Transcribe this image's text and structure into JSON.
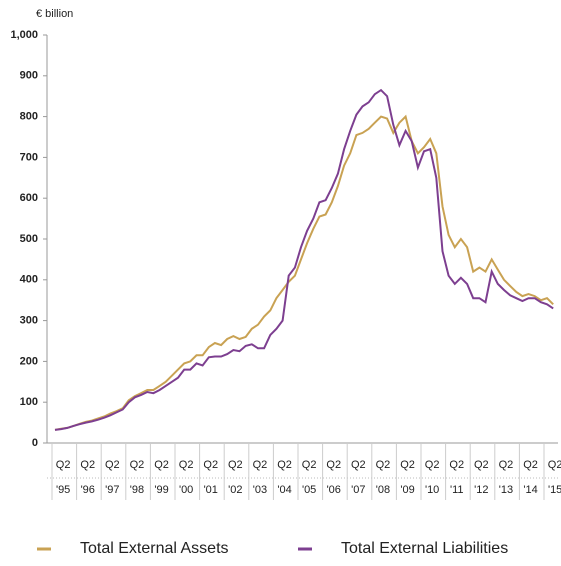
{
  "chart_data": {
    "type": "line",
    "y_label": "€ billion",
    "categories": [
      null,
      "Q2",
      null,
      null,
      null,
      "Q2",
      null,
      null,
      null,
      "Q2",
      null,
      null,
      null,
      "Q2",
      null,
      null,
      null,
      "Q2",
      null,
      null,
      null,
      "Q2",
      null,
      null,
      null,
      "Q2",
      null,
      null,
      null,
      "Q2",
      null,
      null,
      null,
      "Q2",
      null,
      null,
      null,
      "Q2",
      null,
      null,
      null,
      "Q2",
      null,
      null,
      null,
      "Q2",
      null,
      null,
      null,
      "Q2",
      null,
      null,
      null,
      "Q2",
      null,
      null,
      null,
      "Q2",
      null,
      null,
      null,
      "Q2",
      null,
      null,
      null,
      "Q2",
      null,
      null,
      null,
      "Q2",
      null,
      null,
      null,
      "Q2",
      null,
      null,
      null,
      "Q2",
      null,
      null,
      null,
      "Q2"
    ],
    "x_group_labels": [
      "'95",
      "'96",
      "'97",
      "'98",
      "'99",
      "'00",
      "'01",
      "'02",
      "'03",
      "'04",
      "'05",
      "'06",
      "'07",
      "'08",
      "'09",
      "'10",
      "'11",
      "'12",
      "'13",
      "'14",
      "'15"
    ],
    "series": [
      {
        "name": "Total External Assets",
        "color": "#c9a253",
        "values": [
          32,
          35,
          37,
          42,
          47,
          52,
          55,
          60,
          65,
          72,
          78,
          85,
          105,
          115,
          122,
          130,
          130,
          140,
          150,
          165,
          180,
          195,
          200,
          215,
          215,
          235,
          245,
          240,
          255,
          262,
          255,
          260,
          280,
          290,
          310,
          325,
          355,
          375,
          395,
          410,
          450,
          490,
          525,
          555,
          560,
          590,
          630,
          680,
          710,
          755,
          760,
          770,
          785,
          800,
          795,
          760,
          785,
          800,
          740,
          710,
          725,
          745,
          710,
          580,
          510,
          480,
          500,
          480,
          420,
          430,
          420,
          450,
          425,
          400,
          385,
          370,
          360,
          365,
          360,
          350,
          355,
          340
        ]
      },
      {
        "name": "Total External Liabilities",
        "color": "#7d3f90",
        "values": [
          32,
          34,
          37,
          42,
          46,
          50,
          53,
          57,
          62,
          68,
          75,
          82,
          100,
          112,
          118,
          125,
          122,
          130,
          140,
          150,
          160,
          180,
          180,
          195,
          190,
          210,
          212,
          212,
          218,
          228,
          225,
          238,
          242,
          232,
          232,
          265,
          280,
          300,
          410,
          430,
          480,
          520,
          550,
          590,
          595,
          625,
          660,
          720,
          765,
          805,
          825,
          835,
          855,
          865,
          850,
          780,
          730,
          765,
          740,
          675,
          715,
          720,
          650,
          470,
          410,
          390,
          405,
          390,
          355,
          355,
          345,
          420,
          390,
          375,
          362,
          355,
          348,
          355,
          355,
          345,
          340,
          330
        ]
      }
    ],
    "ylim": [
      0,
      1000
    ],
    "yticks": [
      0,
      100,
      200,
      300,
      400,
      500,
      600,
      700,
      800,
      900,
      {
        "value": 1000,
        "label": "1,000"
      }
    ],
    "grid": false,
    "legend": "bottom"
  }
}
